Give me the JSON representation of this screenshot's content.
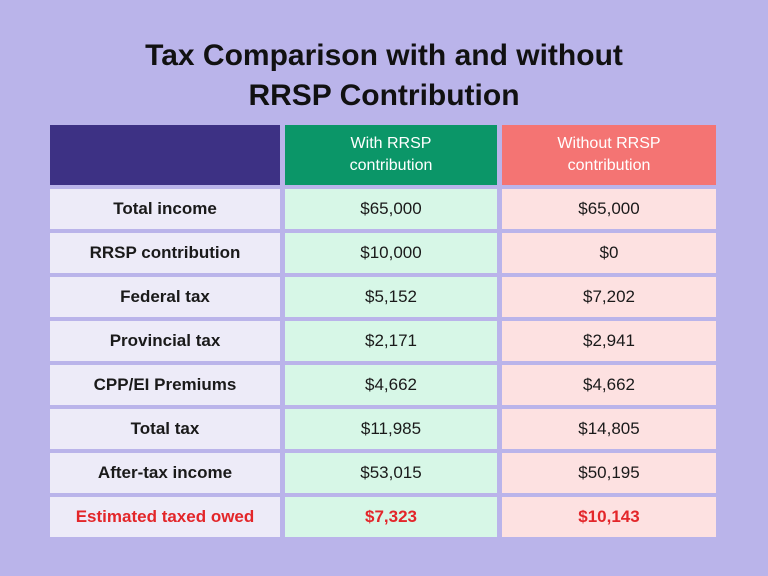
{
  "title": "Tax Comparison with and without RRSP Contribution",
  "table": {
    "headers": [
      "With RRSP contribution",
      "Without RRSP contribution"
    ],
    "rows": [
      [
        "Total income",
        "$65,000",
        "$65,000"
      ],
      [
        "RRSP contribution",
        "$10,000",
        "$0"
      ],
      [
        "Federal tax",
        "$5,152",
        "$7,202"
      ],
      [
        "Provincial tax",
        "$2,171",
        "$2,941"
      ],
      [
        "CPP/EI Premiums",
        "$4,662",
        "$4,662"
      ],
      [
        "Total tax",
        "$11,985",
        "$14,805"
      ],
      [
        "After-tax income",
        "$53,015",
        "$50,195"
      ],
      [
        "Estimated taxed owed",
        "$7,323",
        "$10,143"
      ]
    ]
  }
}
